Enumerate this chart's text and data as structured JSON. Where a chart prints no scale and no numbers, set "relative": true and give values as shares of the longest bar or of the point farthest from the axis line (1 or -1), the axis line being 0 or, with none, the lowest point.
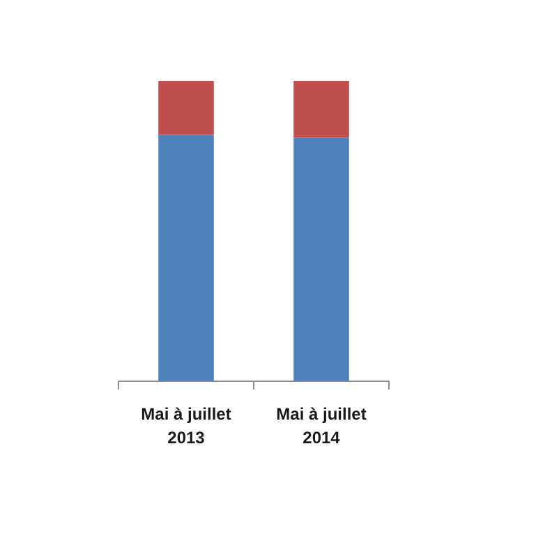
{
  "chart_data": {
    "type": "bar",
    "categories": [
      "Mai à juillet 2013",
      "Mai à juillet 2014"
    ],
    "series": [
      {
        "color": "#4f81bd",
        "values": [
          0.82,
          0.81
        ]
      },
      {
        "color": "#c0504d",
        "values": [
          0.18,
          0.19
        ]
      }
    ],
    "stacked": true,
    "relative": true
  }
}
